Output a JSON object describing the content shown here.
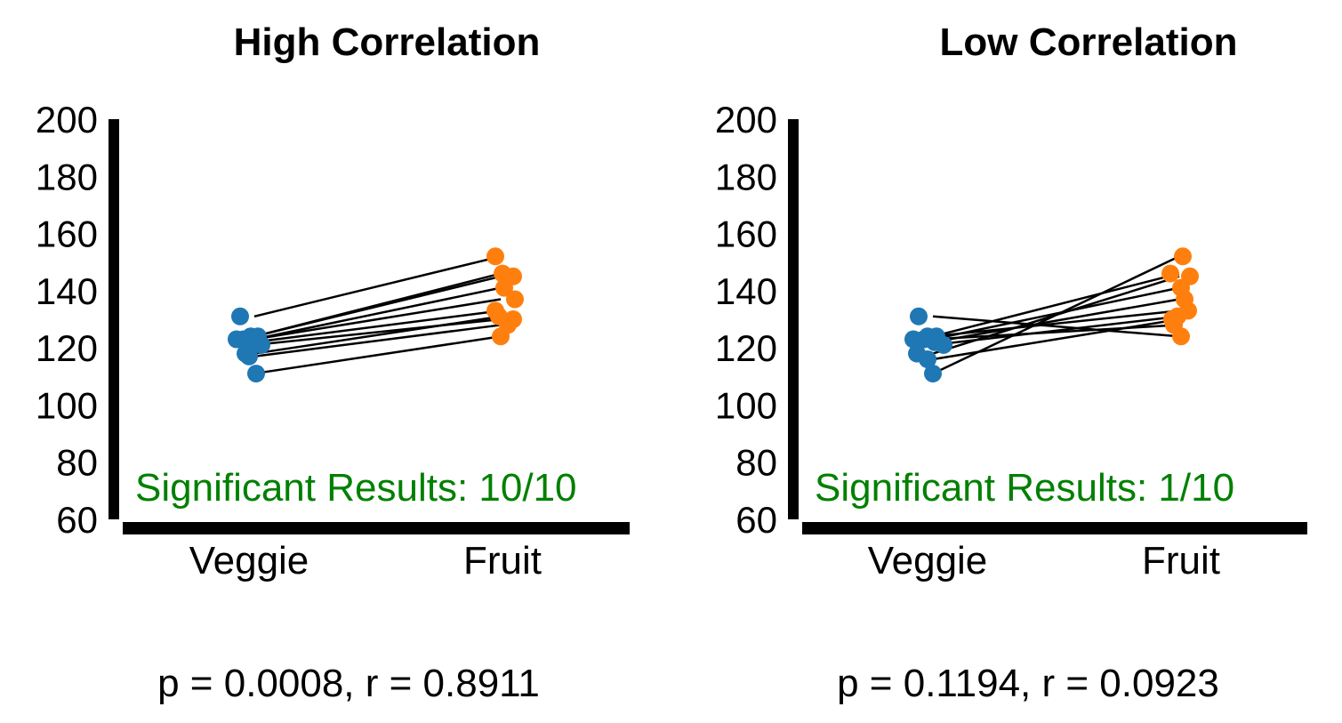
{
  "chart_data": [
    {
      "type": "scatter",
      "title": "High Correlation",
      "categories": [
        "Veggie",
        "Fruit"
      ],
      "ylim": [
        60,
        200
      ],
      "yticks": [
        60,
        80,
        100,
        120,
        140,
        160,
        180,
        200
      ],
      "grid": false,
      "colors": {
        "Veggie": "#1f77b4",
        "Fruit": "#ff7f0e",
        "annotation": "#008000"
      },
      "pairs": [
        {
          "veggie": 131,
          "fruit": 152
        },
        {
          "veggie": 124,
          "fruit": 146
        },
        {
          "veggie": 124,
          "fruit": 145
        },
        {
          "veggie": 123,
          "fruit": 141
        },
        {
          "veggie": 123,
          "fruit": 137
        },
        {
          "veggie": 122,
          "fruit": 133
        },
        {
          "veggie": 121,
          "fruit": 130
        },
        {
          "veggie": 118,
          "fruit": 131
        },
        {
          "veggie": 117,
          "fruit": 128
        },
        {
          "veggie": 111,
          "fruit": 124
        }
      ],
      "annotation": "Significant Results: 10/10",
      "stats": "p = 0.0008, r = 0.8911"
    },
    {
      "type": "scatter",
      "title": "Low Correlation",
      "categories": [
        "Veggie",
        "Fruit"
      ],
      "ylim": [
        60,
        200
      ],
      "yticks": [
        60,
        80,
        100,
        120,
        140,
        160,
        180,
        200
      ],
      "grid": false,
      "colors": {
        "Veggie": "#1f77b4",
        "Fruit": "#ff7f0e",
        "annotation": "#008000"
      },
      "pairs": [
        {
          "veggie": 131,
          "fruit": 124
        },
        {
          "veggie": 124,
          "fruit": 146
        },
        {
          "veggie": 124,
          "fruit": 133
        },
        {
          "veggie": 123,
          "fruit": 141
        },
        {
          "veggie": 123,
          "fruit": 128
        },
        {
          "veggie": 122,
          "fruit": 137
        },
        {
          "veggie": 121,
          "fruit": 131
        },
        {
          "veggie": 118,
          "fruit": 145
        },
        {
          "veggie": 116,
          "fruit": 130
        },
        {
          "veggie": 111,
          "fruit": 152
        }
      ],
      "annotation": "Significant Results: 1/10",
      "stats": "p = 0.1194, r = 0.0923"
    }
  ]
}
